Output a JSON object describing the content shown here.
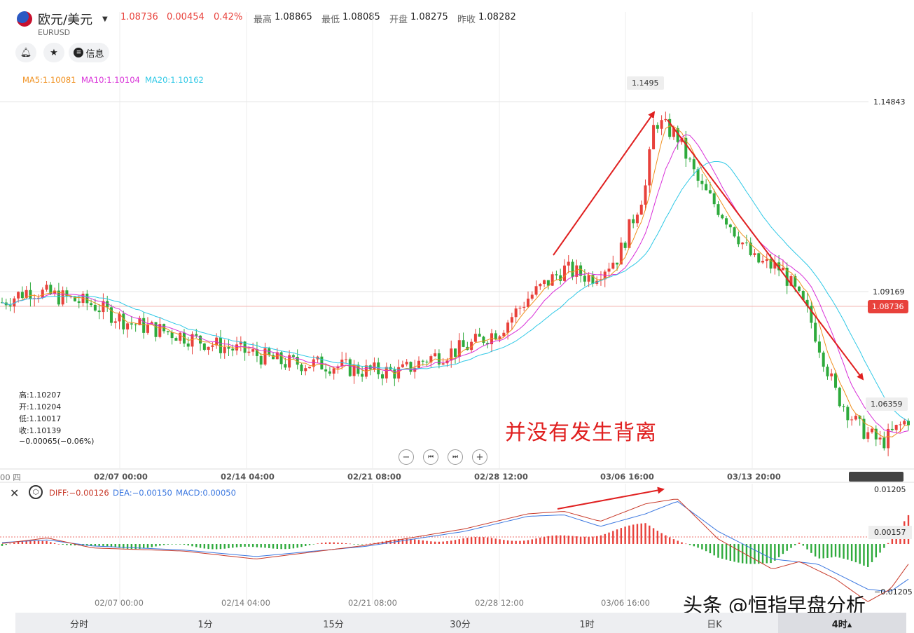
{
  "header": {
    "pair_name": "欧元/美元",
    "symbol": "EURUSD",
    "last": "1.08736",
    "change": "0.00454",
    "change_pct": "0.42%",
    "high_label": "最高",
    "high": "1.08865",
    "low_label": "最低",
    "low": "1.08085",
    "open_label": "开盘",
    "open": "1.08275",
    "prev_label": "昨收",
    "prev": "1.08282",
    "info_label": "信息"
  },
  "ma_legend": {
    "ma5": "MA5:1.10081",
    "ma10": "MA10:1.10104",
    "ma20": "MA20:1.10162"
  },
  "ohlc_box": {
    "high": "高:1.10207",
    "open": "开:1.10204",
    "low": "低:1.10017",
    "close": "收:1.10139",
    "change": "−0.00065(−0.06%)"
  },
  "price_axis": {
    "max_marker": "1.1495",
    "level_top": "1.14843",
    "level_mid": "1.09169",
    "current": "1.08736",
    "min_marker": "1.06359"
  },
  "time_axis": [
    "02/07 00:00",
    "02/14 04:00",
    "02/21 08:00",
    "02/28 12:00",
    "03/06 16:00",
    "03/13 20:00"
  ],
  "time_axis_edge": "00 四",
  "annotation": "并没有发生背离",
  "macd_legend": {
    "diff": "DIFF:−0.00126",
    "dea": "DEA:−0.00150",
    "macd": "MACD:0.00050"
  },
  "macd_axis": {
    "top": "0.01205",
    "mid": "0.00157",
    "bottom": "−0.01205"
  },
  "period_tabs": [
    "分时",
    "1分",
    "15分",
    "30分",
    "1时",
    "日K",
    "4时▴"
  ],
  "watermark": "头条 @恒指早盘分析",
  "colors": {
    "up": "#e8413b",
    "down": "#2eaa3c",
    "ma5": "#f0901e",
    "ma10": "#d82fd8",
    "ma20": "#2ec8e6",
    "dea": "#3c78e0",
    "diff": "#c83a2a",
    "arrow": "#e02020"
  },
  "chart_data": {
    "type": "candlestick",
    "instrument": "EURUSD",
    "timeframe": "4时",
    "close_path": [
      [
        0,
        1.098
      ],
      [
        0.03,
        1.101
      ],
      [
        0.07,
        1.099
      ],
      [
        0.1,
        1.0975
      ],
      [
        0.14,
        1.093
      ],
      [
        0.19,
        1.0905
      ],
      [
        0.23,
        1.088
      ],
      [
        0.27,
        1.086
      ],
      [
        0.31,
        1.0835
      ],
      [
        0.36,
        1.083
      ],
      [
        0.4,
        1.0815
      ],
      [
        0.44,
        1.0812
      ],
      [
        0.47,
        1.0845
      ],
      [
        0.51,
        1.087
      ],
      [
        0.55,
        1.0915
      ],
      [
        0.58,
        1.099
      ],
      [
        0.62,
        1.106
      ],
      [
        0.65,
        1.104
      ],
      [
        0.68,
        1.109
      ],
      [
        0.71,
        1.126
      ],
      [
        0.72,
        1.142
      ],
      [
        0.745,
        1.138
      ],
      [
        0.77,
        1.126
      ],
      [
        0.8,
        1.118
      ],
      [
        0.83,
        1.108
      ],
      [
        0.86,
        1.106
      ],
      [
        0.89,
        1.095
      ],
      [
        0.92,
        1.076
      ],
      [
        0.945,
        1.068
      ],
      [
        0.97,
        1.064
      ],
      [
        1.0,
        1.07
      ]
    ],
    "macd_diff_path": [
      [
        0,
        0.0001
      ],
      [
        0.05,
        0.0012
      ],
      [
        0.1,
        -0.0008
      ],
      [
        0.2,
        -0.0014
      ],
      [
        0.28,
        -0.003
      ],
      [
        0.4,
        -0.0003
      ],
      [
        0.51,
        0.003
      ],
      [
        0.58,
        0.006
      ],
      [
        0.62,
        0.0065
      ],
      [
        0.66,
        0.0045
      ],
      [
        0.71,
        0.008
      ],
      [
        0.745,
        0.009
      ],
      [
        0.79,
        0.001
      ],
      [
        0.85,
        -0.005
      ],
      [
        0.88,
        -0.0035
      ],
      [
        0.92,
        -0.007
      ],
      [
        0.955,
        -0.0115
      ],
      [
        0.98,
        -0.009
      ],
      [
        1.0,
        -0.004
      ]
    ],
    "macd_dea_path": [
      [
        0,
        0.0003
      ],
      [
        0.05,
        0.0008
      ],
      [
        0.1,
        -0.0004
      ],
      [
        0.2,
        -0.0012
      ],
      [
        0.28,
        -0.0025
      ],
      [
        0.4,
        -0.0005
      ],
      [
        0.51,
        0.0025
      ],
      [
        0.58,
        0.0055
      ],
      [
        0.62,
        0.0058
      ],
      [
        0.66,
        0.0035
      ],
      [
        0.71,
        0.006
      ],
      [
        0.745,
        0.0085
      ],
      [
        0.79,
        0.0025
      ],
      [
        0.85,
        -0.003
      ],
      [
        0.9,
        -0.004
      ],
      [
        0.955,
        -0.009
      ],
      [
        0.98,
        -0.0095
      ],
      [
        1.0,
        -0.007
      ]
    ],
    "ylim_price": [
      1.058,
      1.156
    ],
    "ylim_macd": [
      -0.012,
      0.012
    ]
  }
}
